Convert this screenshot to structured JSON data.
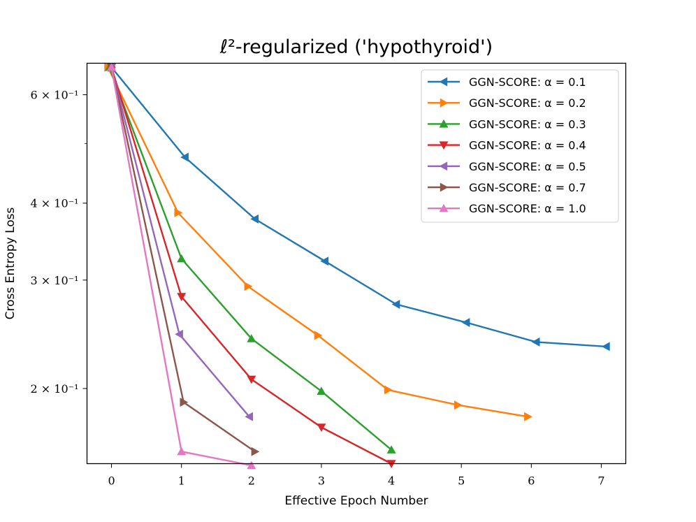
{
  "chart_data": {
    "type": "line",
    "title": "ℓ²-regularized ('hypothyroid')",
    "xlabel": "Effective Epoch Number",
    "ylabel": "Cross Entropy Loss",
    "yscale": "log",
    "xlim": [
      -0.35,
      7.35
    ],
    "ylim": [
      0.151,
      0.675
    ],
    "xticks": [
      0,
      1,
      2,
      3,
      4,
      5,
      6,
      7
    ],
    "xtick_labels": [
      "0",
      "1",
      "2",
      "3",
      "4",
      "5",
      "6",
      "7"
    ],
    "yticks": [
      0.2,
      0.3,
      0.4,
      0.6
    ],
    "ytick_labels": [
      "2 × 10⁻¹",
      "3 × 10⁻¹",
      "4 × 10⁻¹",
      "6 × 10⁻¹"
    ],
    "legend_position": "top-right",
    "series": [
      {
        "name": "GGN-SCORE: α = 0.1",
        "color": "#1f77b4",
        "marker": "triangle-left",
        "x": [
          0,
          1.05,
          2.05,
          3.05,
          4.07,
          5.07,
          6.07,
          7.07
        ],
        "values": [
          0.665,
          0.475,
          0.377,
          0.322,
          0.274,
          0.256,
          0.238,
          0.234
        ]
      },
      {
        "name": "GGN-SCORE: α = 0.2",
        "color": "#ff7f0e",
        "marker": "triangle-right",
        "x": [
          -0.05,
          0.95,
          1.95,
          2.95,
          3.95,
          4.95,
          5.95
        ],
        "values": [
          0.665,
          0.386,
          0.293,
          0.244,
          0.199,
          0.188,
          0.18
        ]
      },
      {
        "name": "GGN-SCORE: α = 0.3",
        "color": "#2ca02c",
        "marker": "triangle-up",
        "x": [
          -0.03,
          1.0,
          2.0,
          3.0,
          4.0
        ],
        "values": [
          0.665,
          0.325,
          0.241,
          0.198,
          0.159
        ]
      },
      {
        "name": "GGN-SCORE: α = 0.4",
        "color": "#d62728",
        "marker": "triangle-down",
        "x": [
          0,
          1.0,
          2.0,
          3.0,
          4.0
        ],
        "values": [
          0.665,
          0.282,
          0.207,
          0.173,
          0.151
        ]
      },
      {
        "name": "GGN-SCORE: α = 0.5",
        "color": "#9467bd",
        "marker": "triangle-left",
        "x": [
          0,
          0.97,
          1.97
        ],
        "values": [
          0.665,
          0.245,
          0.18
        ]
      },
      {
        "name": "GGN-SCORE: α = 0.7",
        "color": "#8c564b",
        "marker": "triangle-right",
        "x": [
          0,
          1.03,
          2.05
        ],
        "values": [
          0.665,
          0.19,
          0.158
        ]
      },
      {
        "name": "GGN-SCORE: α = 1.0",
        "color": "#e377c2",
        "marker": "triangle-up",
        "x": [
          0,
          1.0,
          2.0
        ],
        "values": [
          0.665,
          0.158,
          0.15
        ]
      }
    ]
  }
}
